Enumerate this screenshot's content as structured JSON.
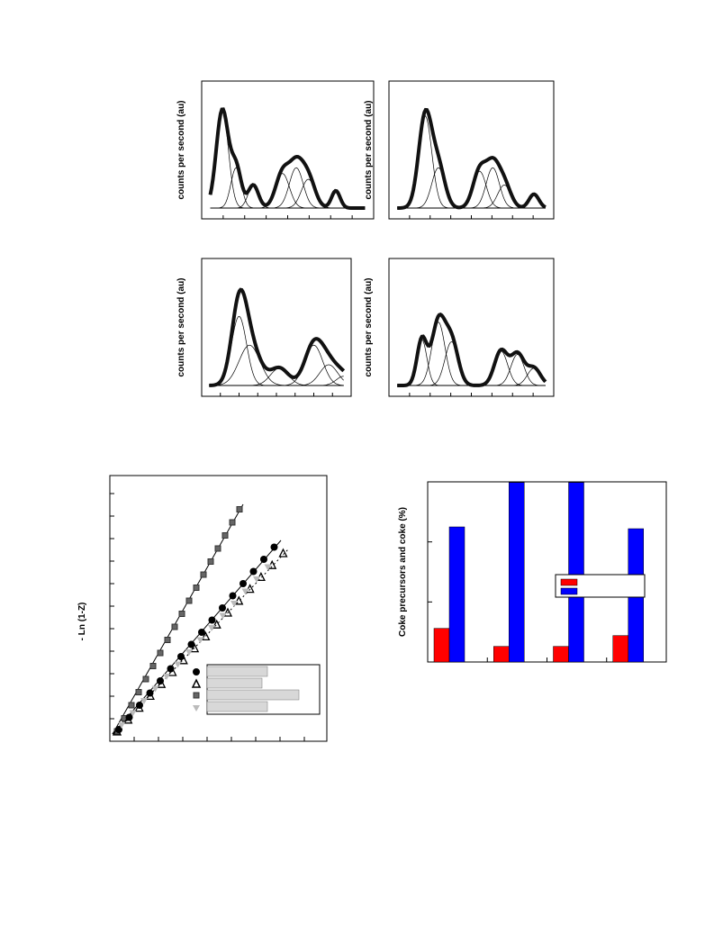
{
  "figures": {
    "spectra": {
      "panels": [
        {
          "ylabel": "counts per second (au)"
        },
        {
          "ylabel": "counts per second (au)"
        },
        {
          "ylabel": "counts per second (au)"
        },
        {
          "ylabel": "counts per second (au)"
        }
      ]
    },
    "kinetics": {
      "ylabel": "- Ln (1-Z)"
    }
  },
  "chart_data": {
    "type": "bar",
    "ylabel": "Coke precursors and coke (%)",
    "categories": [
      null,
      null,
      null,
      null
    ],
    "series": [
      {
        "color": "#ff0000",
        "values": [
          0.56,
          0.26,
          0.26,
          0.44
        ]
      },
      {
        "color": "#0000ff",
        "values": [
          2.25,
          2.99,
          2.99,
          2.22
        ]
      }
    ],
    "ylim": [
      0,
      3
    ]
  }
}
